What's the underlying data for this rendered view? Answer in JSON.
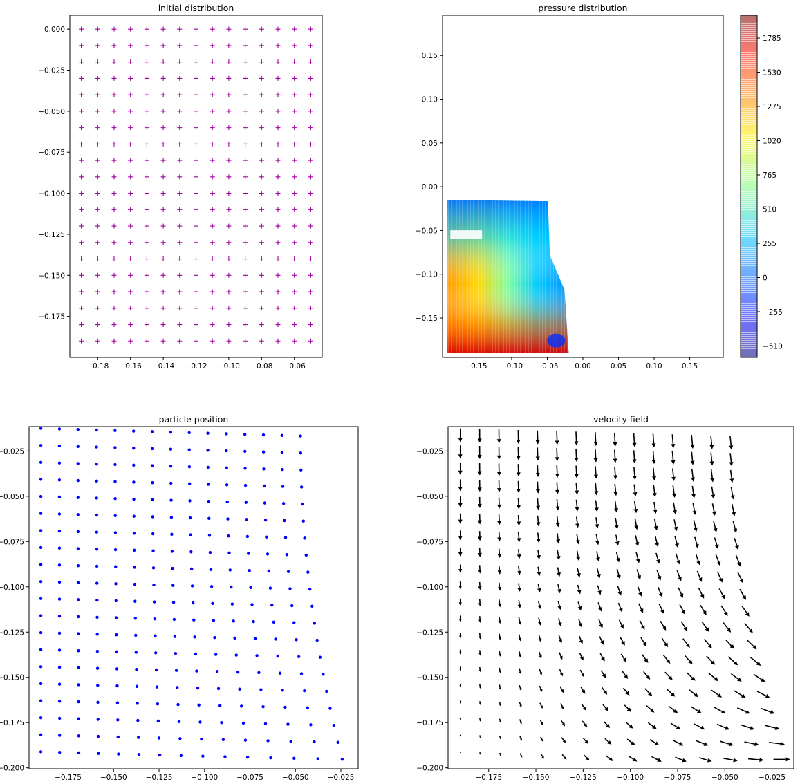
{
  "chart_data": [
    {
      "id": "initial",
      "type": "scatter",
      "title": "initial distribution",
      "marker": "+",
      "color": "#a000a0",
      "grid": false,
      "xlim": [
        -0.197,
        -0.043
      ],
      "ylim": [
        -0.2,
        0.0085
      ],
      "xticks": [
        -0.18,
        -0.16,
        -0.14,
        -0.12,
        -0.1,
        -0.08,
        -0.06
      ],
      "xticklabels": [
        "−0.18",
        "−0.16",
        "−0.14",
        "−0.12",
        "−0.10",
        "−0.08",
        "−0.06"
      ],
      "yticks": [
        0.0,
        -0.025,
        -0.05,
        -0.075,
        -0.1,
        -0.125,
        -0.15,
        -0.175
      ],
      "yticklabels": [
        "0.000",
        "−0.025",
        "−0.050",
        "−0.075",
        "−0.100",
        "−0.125",
        "−0.150",
        "−0.175"
      ],
      "grid_x": {
        "start": -0.19,
        "step": 0.01,
        "count": 15
      },
      "grid_y": {
        "start": 0.0,
        "step": -0.01,
        "count": 20
      }
    },
    {
      "id": "pressure",
      "type": "contour",
      "title": "pressure distribution",
      "colormap": "jet",
      "xlim": [
        -0.197,
        0.197
      ],
      "ylim": [
        -0.195,
        0.196
      ],
      "xticks": [
        -0.15,
        -0.1,
        -0.05,
        0.0,
        0.05,
        0.1,
        0.15
      ],
      "xticklabels": [
        "−0.15",
        "−0.10",
        "−0.05",
        "0.00",
        "0.05",
        "0.10",
        "0.15"
      ],
      "yticks": [
        0.15,
        0.1,
        0.05,
        0.0,
        -0.05,
        -0.1,
        -0.15
      ],
      "yticklabels": [
        "0.15",
        "0.10",
        "0.05",
        "0.00",
        "−0.05",
        "−0.10",
        "−0.15"
      ],
      "region": {
        "x": [
          -0.19,
          -0.02
        ],
        "y": [
          -0.19,
          -0.015
        ]
      },
      "colorbar": {
        "range": [
          -595,
          1955
        ],
        "ticks": [
          1785,
          1530,
          1275,
          1020,
          765,
          510,
          255,
          0,
          -255,
          -510
        ],
        "ticklabels": [
          "1785",
          "1530",
          "1275",
          "1020",
          "765",
          "510",
          "255",
          "0",
          "−255",
          "−510"
        ]
      }
    },
    {
      "id": "particles",
      "type": "scatter",
      "title": "particle position",
      "marker": ".",
      "color": "#0000ff",
      "grid": false,
      "xlim": [
        -0.1965,
        -0.0155
      ],
      "ylim": [
        -0.2005,
        -0.0115
      ],
      "xticks": [
        -0.175,
        -0.15,
        -0.125,
        -0.1,
        -0.075,
        -0.05,
        -0.025
      ],
      "xticklabels": [
        "−0.175",
        "−0.150",
        "−0.125",
        "−0.100",
        "−0.075",
        "−0.050",
        "−0.025"
      ],
      "yticks": [
        -0.025,
        -0.05,
        -0.075,
        -0.1,
        -0.125,
        -0.15,
        -0.175,
        -0.2
      ],
      "yticklabels": [
        "−0.025",
        "−0.050",
        "−0.075",
        "−0.100",
        "−0.125",
        "−0.150",
        "−0.175",
        "−0.200"
      ]
    },
    {
      "id": "velocity",
      "type": "quiver",
      "title": "velocity field",
      "color": "#000000",
      "xlim": [
        -0.1965,
        -0.0135
      ],
      "ylim": [
        -0.2005,
        -0.0115
      ],
      "xticks": [
        -0.175,
        -0.15,
        -0.125,
        -0.1,
        -0.075,
        -0.05,
        -0.025
      ],
      "xticklabels": [
        "−0.175",
        "−0.150",
        "−0.125",
        "−0.100",
        "−0.075",
        "−0.050",
        "−0.025"
      ],
      "yticks": [
        -0.025,
        -0.05,
        -0.075,
        -0.1,
        -0.125,
        -0.15,
        -0.175,
        -0.2
      ],
      "yticklabels": [
        "−0.025",
        "−0.050",
        "−0.075",
        "−0.100",
        "−0.125",
        "−0.150",
        "−0.175",
        "−0.200"
      ]
    }
  ]
}
